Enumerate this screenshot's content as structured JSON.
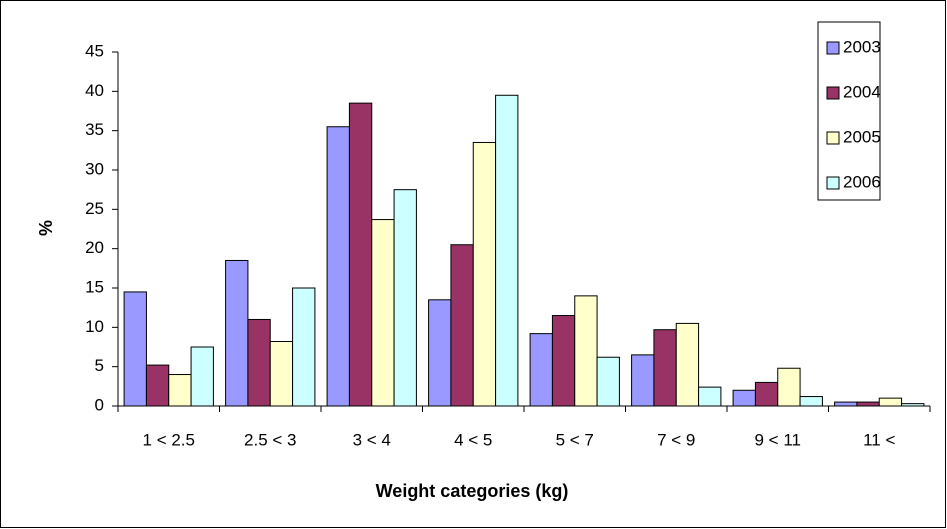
{
  "chart_data": {
    "type": "bar",
    "xlabel": "Weight categories (kg)",
    "ylabel": "%",
    "categories": [
      "1 < 2.5",
      "2.5 < 3",
      "3 < 4",
      "4 < 5",
      "5 < 7",
      "7 < 9",
      "9 < 11",
      "11 <"
    ],
    "series": [
      {
        "name": "2003",
        "color": "#9999ff",
        "values": [
          14.5,
          18.5,
          35.5,
          13.5,
          9.2,
          6.5,
          2,
          0.5
        ]
      },
      {
        "name": "2004",
        "color": "#993366",
        "values": [
          5.2,
          11,
          38.5,
          20.5,
          11.5,
          9.7,
          3,
          0.5
        ]
      },
      {
        "name": "2005",
        "color": "#ffffcc",
        "values": [
          4,
          8.2,
          23.7,
          33.5,
          14,
          10.5,
          4.8,
          1
        ]
      },
      {
        "name": "2006",
        "color": "#ccffff",
        "values": [
          7.5,
          15,
          27.5,
          39.5,
          6.2,
          2.4,
          1.2,
          0.3
        ]
      }
    ],
    "ylim": [
      0,
      45
    ],
    "yticks": [
      0,
      5,
      10,
      15,
      20,
      25,
      30,
      35,
      40,
      45
    ],
    "grid": false,
    "legend": "upper right"
  }
}
